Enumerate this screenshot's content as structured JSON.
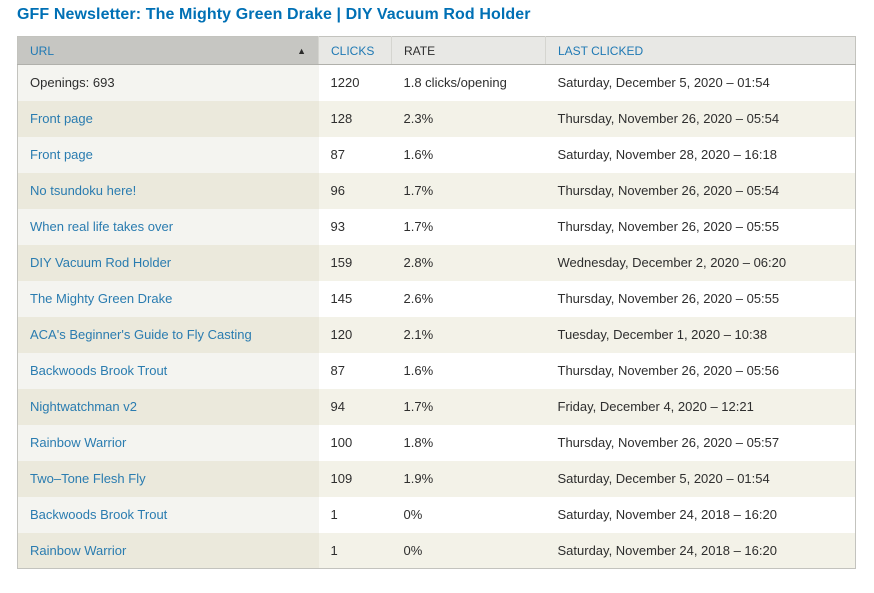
{
  "page_title": "GFF Newsletter: The Mighty Green Drake | DIY Vacuum Rod Holder",
  "colors": {
    "title_blue": "#0070b5",
    "link_blue": "#2a7cb0",
    "header_bg": "#e8e8e5",
    "header_active_bg": "#c6c6c2",
    "row_even_bg": "#f3f2e8",
    "row_even_active_bg": "#ebe9dc",
    "row_odd_bg": "#ffffff",
    "row_odd_active_bg": "#f4f4f0"
  },
  "table": {
    "sort_icon": "▲",
    "sort_icon_name": "sort-ascending-icon",
    "columns": [
      {
        "key": "url",
        "label": "URL",
        "sortable": true,
        "sorted": "asc"
      },
      {
        "key": "clicks",
        "label": "CLICKS",
        "sortable": true
      },
      {
        "key": "rate",
        "label": "RATE",
        "sortable": false
      },
      {
        "key": "last_clicked",
        "label": "LAST CLICKED",
        "sortable": true
      }
    ],
    "rows": [
      {
        "url": "Openings: 693",
        "is_link": false,
        "clicks": "1220",
        "rate": "1.8 clicks/opening",
        "last_clicked": "Saturday, December 5, 2020 – 01:54"
      },
      {
        "url": "Front page",
        "is_link": true,
        "clicks": "128",
        "rate": "2.3%",
        "last_clicked": "Thursday, November 26, 2020 – 05:54"
      },
      {
        "url": "Front page",
        "is_link": true,
        "clicks": "87",
        "rate": "1.6%",
        "last_clicked": "Saturday, November 28, 2020 – 16:18"
      },
      {
        "url": "No tsundoku here!",
        "is_link": true,
        "clicks": "96",
        "rate": "1.7%",
        "last_clicked": "Thursday, November 26, 2020 – 05:54"
      },
      {
        "url": "When real life takes over",
        "is_link": true,
        "clicks": "93",
        "rate": "1.7%",
        "last_clicked": "Thursday, November 26, 2020 – 05:55"
      },
      {
        "url": "DIY Vacuum Rod Holder",
        "is_link": true,
        "clicks": "159",
        "rate": "2.8%",
        "last_clicked": "Wednesday, December 2, 2020 – 06:20"
      },
      {
        "url": "The Mighty Green Drake",
        "is_link": true,
        "clicks": "145",
        "rate": "2.6%",
        "last_clicked": "Thursday, November 26, 2020 – 05:55"
      },
      {
        "url": "ACA's Beginner's Guide to Fly Casting",
        "is_link": true,
        "clicks": "120",
        "rate": "2.1%",
        "last_clicked": "Tuesday, December 1, 2020 – 10:38"
      },
      {
        "url": "Backwoods Brook Trout",
        "is_link": true,
        "clicks": "87",
        "rate": "1.6%",
        "last_clicked": "Thursday, November 26, 2020 – 05:56"
      },
      {
        "url": "Nightwatchman v2",
        "is_link": true,
        "clicks": "94",
        "rate": "1.7%",
        "last_clicked": "Friday, December 4, 2020 – 12:21"
      },
      {
        "url": "Rainbow Warrior",
        "is_link": true,
        "clicks": "100",
        "rate": "1.8%",
        "last_clicked": "Thursday, November 26, 2020 – 05:57"
      },
      {
        "url": "Two–Tone Flesh Fly",
        "is_link": true,
        "clicks": "109",
        "rate": "1.9%",
        "last_clicked": "Saturday, December 5, 2020 – 01:54"
      },
      {
        "url": "Backwoods Brook Trout",
        "is_link": true,
        "clicks": "1",
        "rate": "0%",
        "last_clicked": "Saturday, November 24, 2018 – 16:20"
      },
      {
        "url": "Rainbow Warrior",
        "is_link": true,
        "clicks": "1",
        "rate": "0%",
        "last_clicked": "Saturday, November 24, 2018 – 16:20"
      }
    ]
  }
}
